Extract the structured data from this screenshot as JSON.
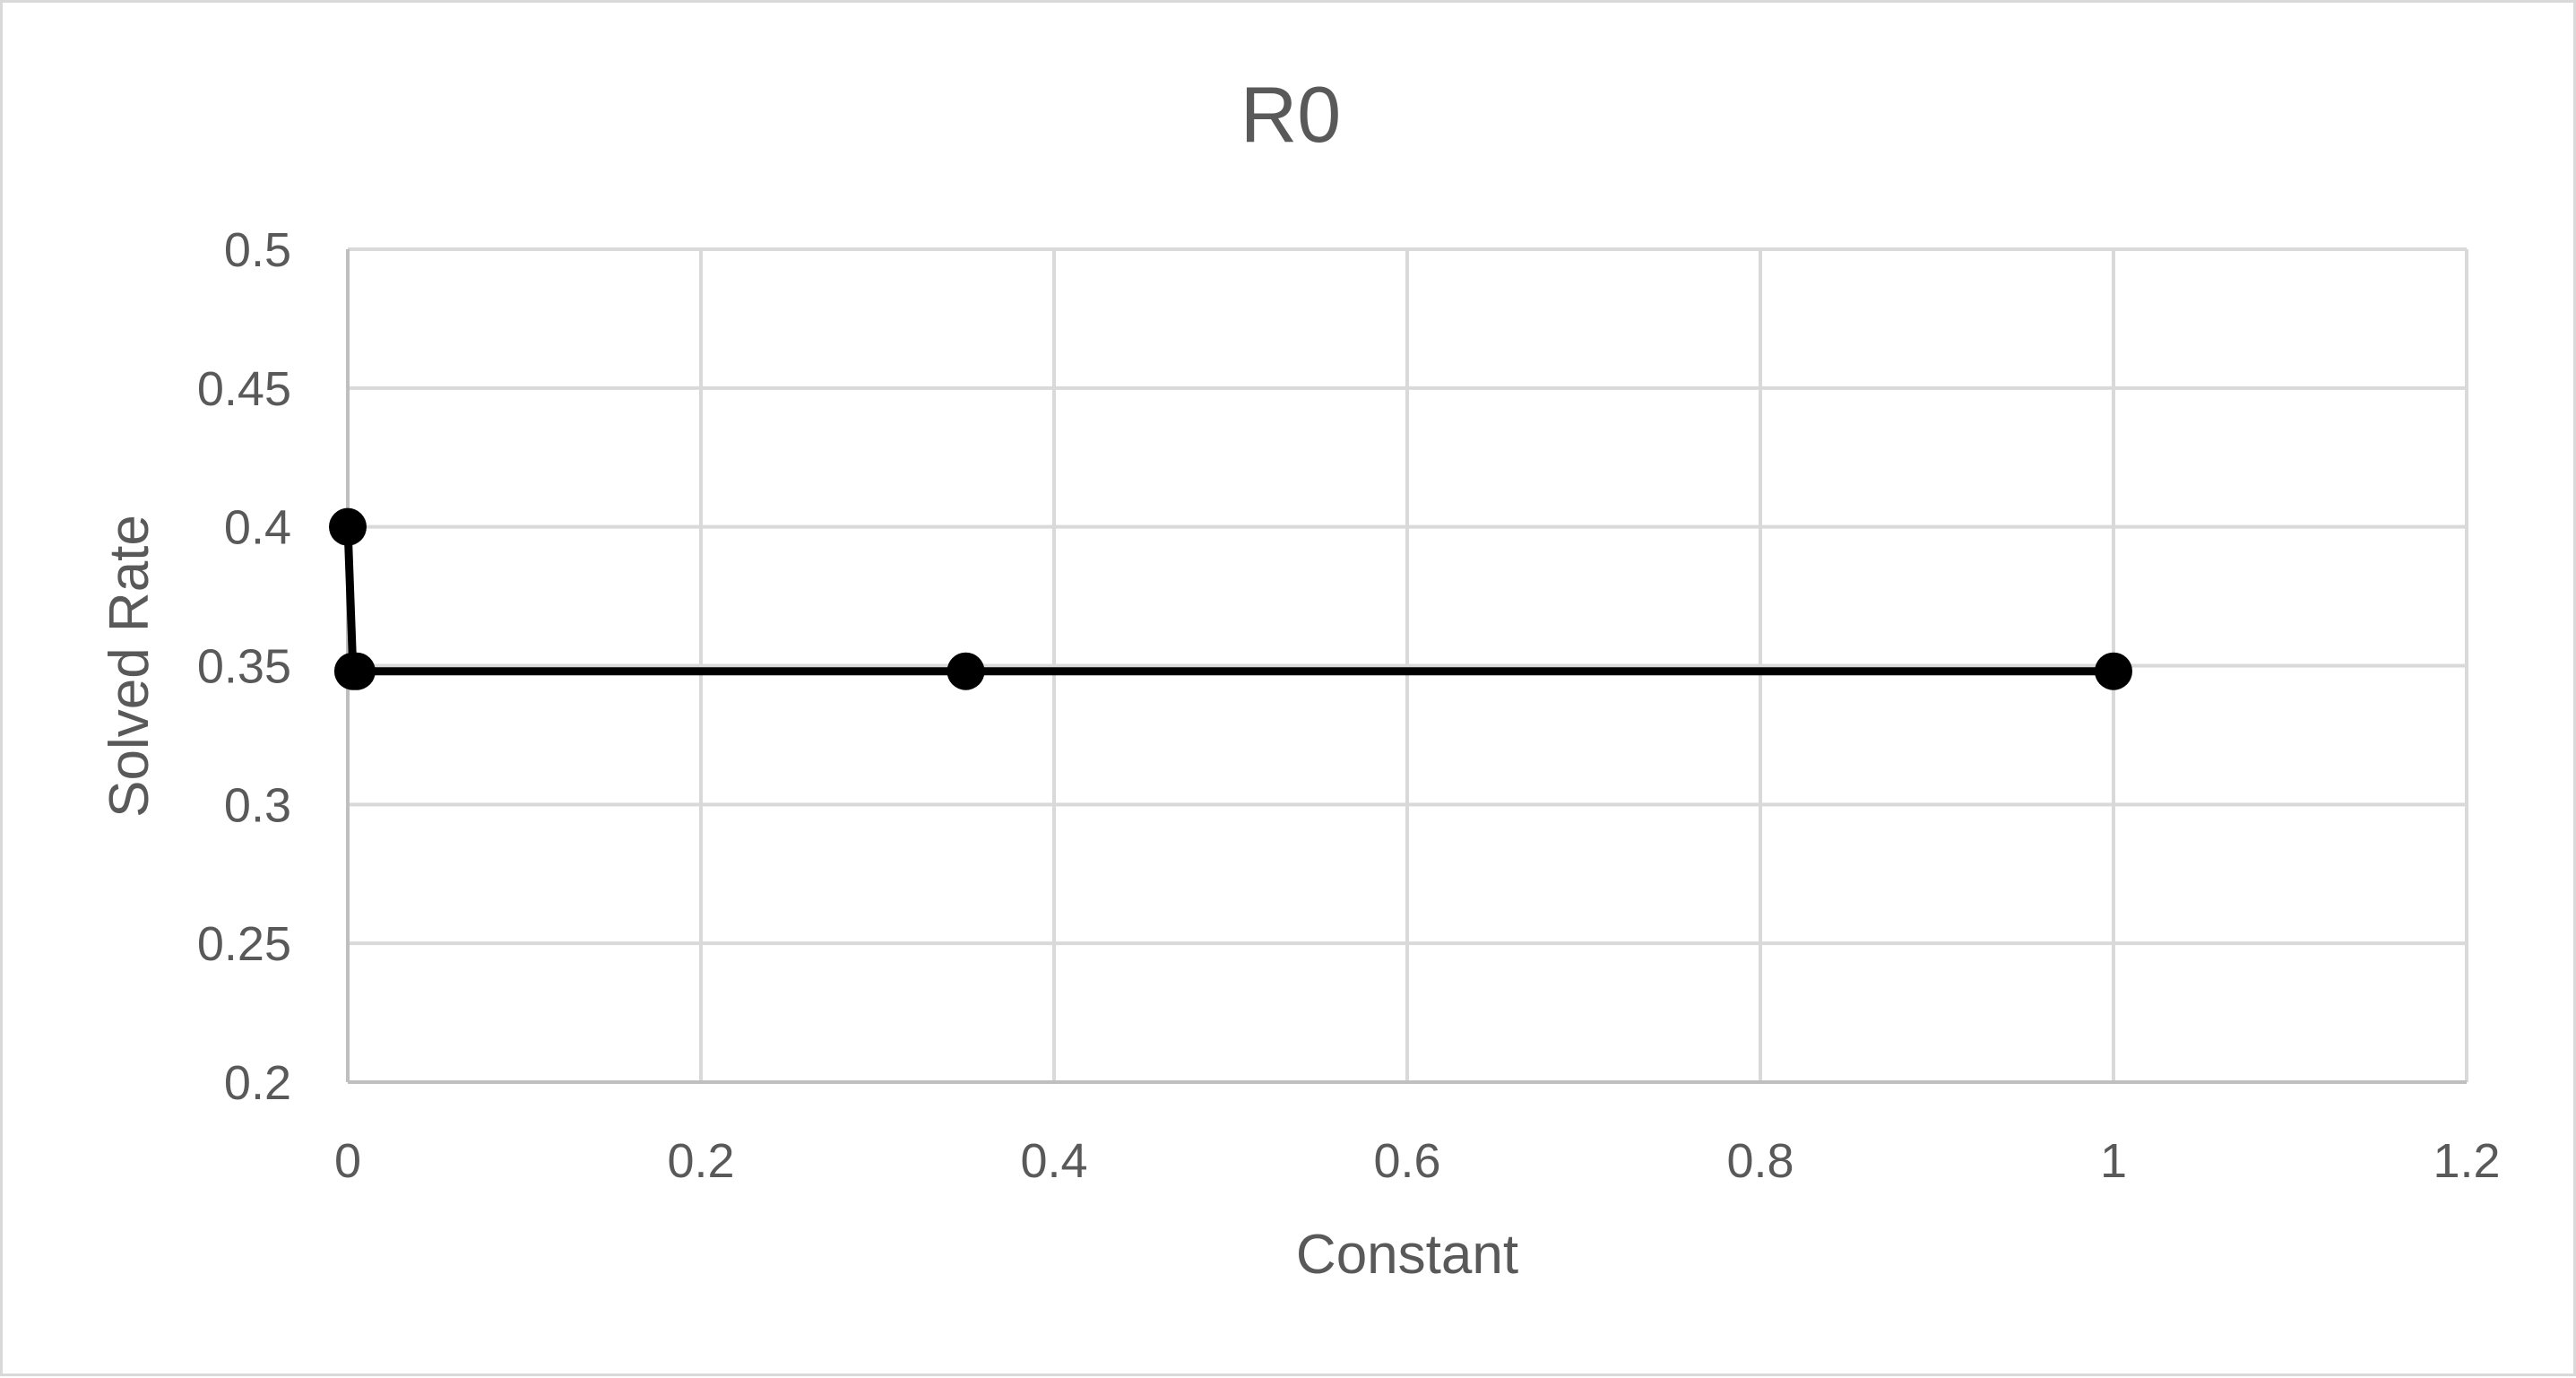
{
  "chart_data": {
    "type": "scatter",
    "title": "R0",
    "xlabel": "Constant",
    "ylabel": "Solved Rate",
    "xlim": [
      0,
      1.2
    ],
    "ylim": [
      0.2,
      0.5
    ],
    "x_ticks": [
      "0",
      "0.2",
      "0.4",
      "0.6",
      "0.8",
      "1",
      "1.2"
    ],
    "y_ticks": [
      "0.2",
      "0.25",
      "0.3",
      "0.35",
      "0.4",
      "0.45",
      "0.5"
    ],
    "grid": true,
    "legend": "none",
    "series": [
      {
        "x": [
          0,
          0.003,
          0.005,
          0.35,
          1
        ],
        "y": [
          0.4,
          0.348,
          0.348,
          0.348,
          0.348
        ],
        "color": "#000000",
        "marker": "circle",
        "line": true
      }
    ]
  }
}
